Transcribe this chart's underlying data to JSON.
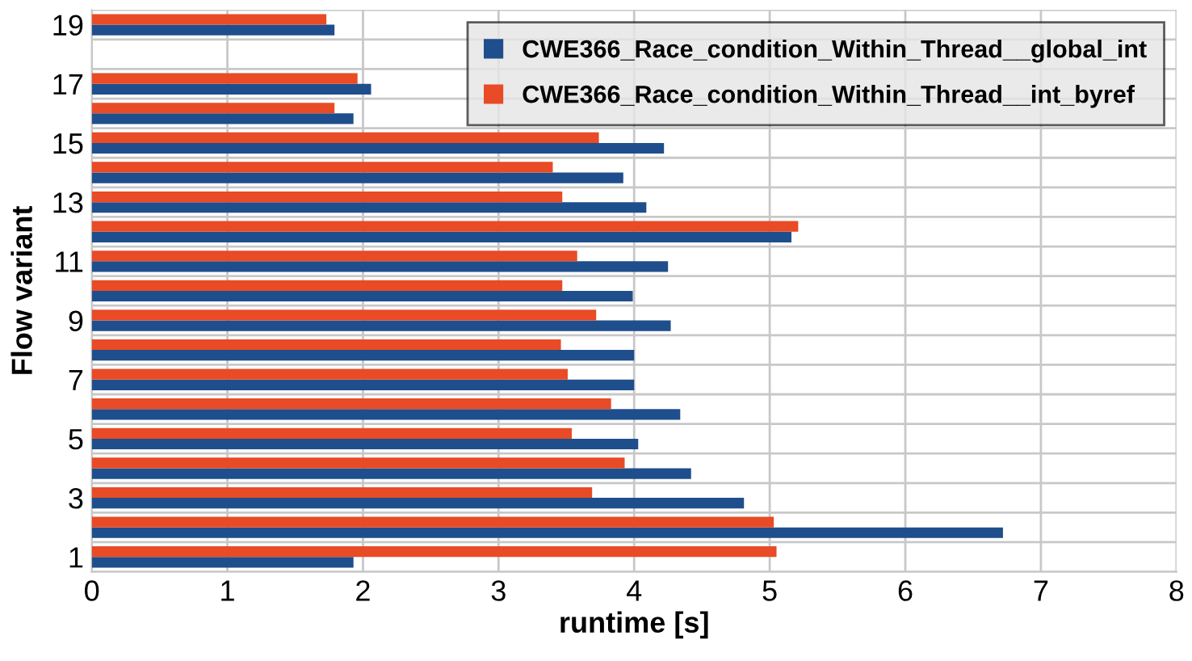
{
  "chart_data": {
    "type": "bar",
    "orientation": "horizontal",
    "xlabel": "runtime [s]",
    "ylabel": "Flow variant",
    "categories": [
      "19",
      null,
      "17",
      null,
      "15",
      null,
      "13",
      null,
      "11",
      null,
      "9",
      null,
      "7",
      null,
      "5",
      null,
      "3",
      null,
      "1"
    ],
    "series": [
      {
        "name": "CWE366_Race_condition_Within_Thread__global_int",
        "color": "#1f4e8c",
        "values": [
          1.79,
          null,
          2.06,
          1.93,
          4.22,
          3.92,
          4.09,
          5.16,
          4.25,
          3.99,
          4.27,
          4.0,
          4.0,
          4.34,
          4.03,
          4.42,
          4.81,
          6.72,
          1.93
        ]
      },
      {
        "name": "CWE366_Race_condition_Within_Thread__int_byref",
        "color": "#e84b26",
        "values": [
          1.73,
          null,
          1.96,
          1.79,
          3.74,
          3.4,
          3.47,
          5.21,
          3.58,
          3.47,
          3.72,
          3.46,
          3.51,
          3.83,
          3.54,
          3.93,
          3.69,
          5.03,
          5.05
        ]
      }
    ],
    "xlim": [
      0,
      8
    ],
    "xticks": [
      0,
      1,
      2,
      3,
      4,
      5,
      6,
      7,
      8
    ],
    "grid": true,
    "legend": "top right"
  }
}
